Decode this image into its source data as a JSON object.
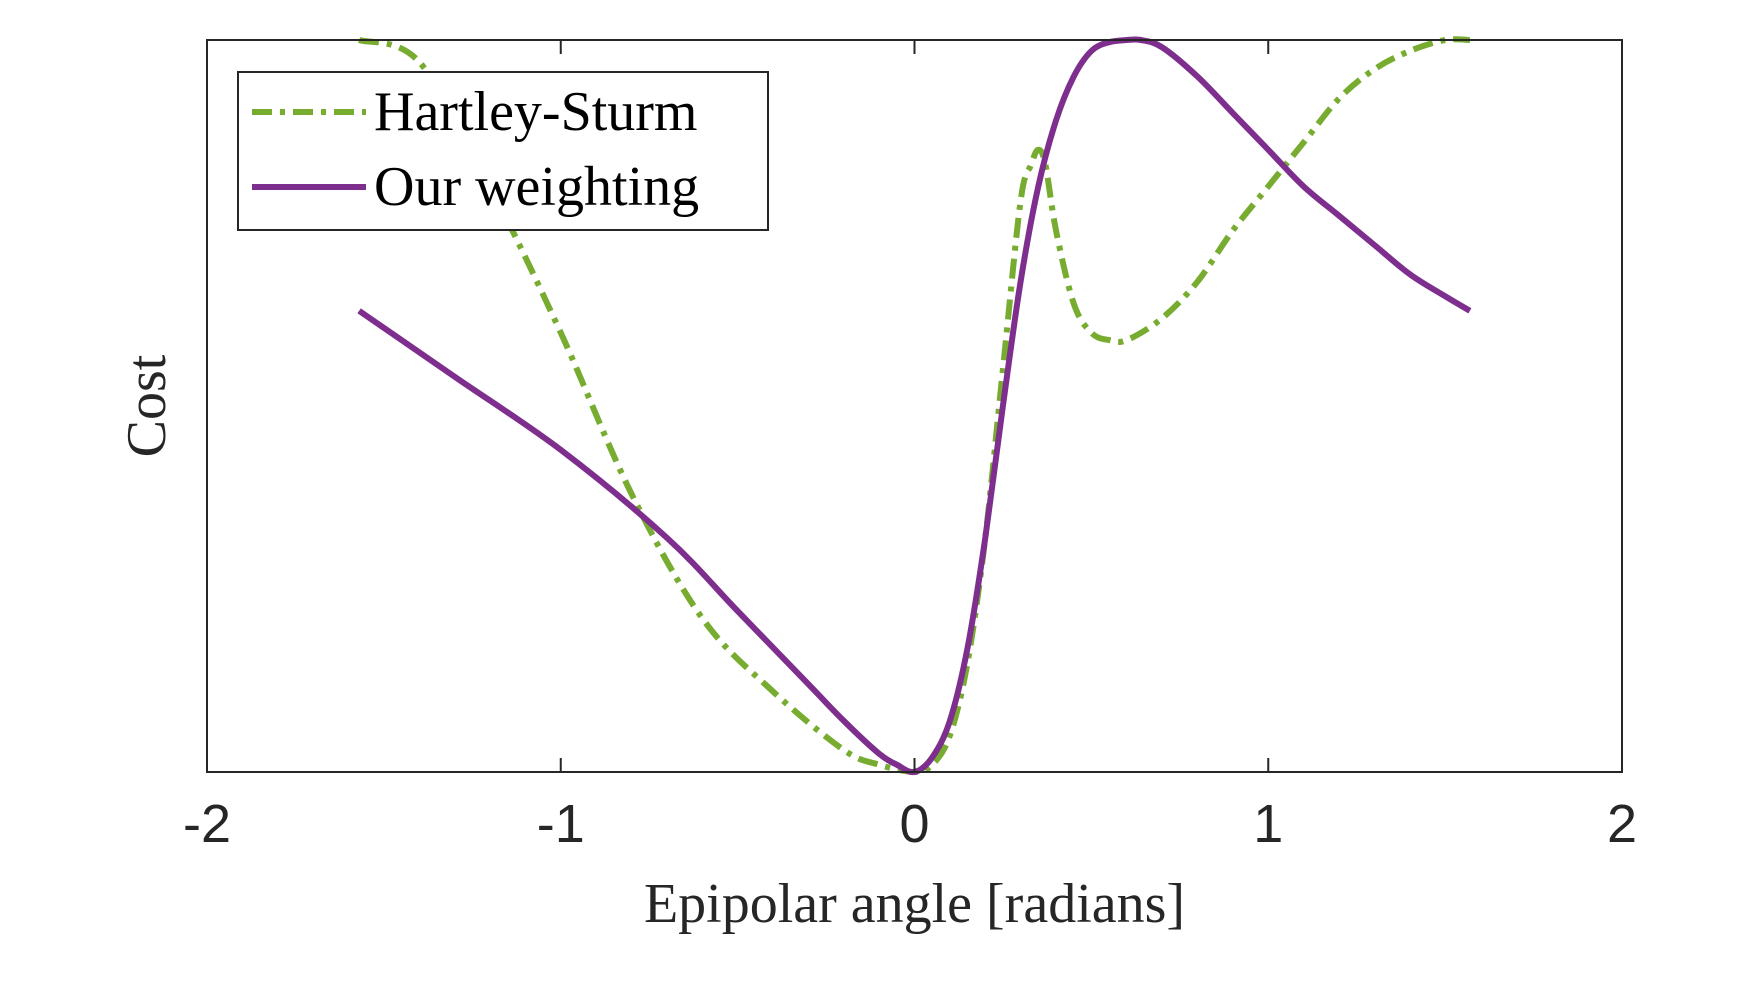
{
  "chart_data": {
    "type": "line",
    "xlabel": "Epipolar angle [radians]",
    "ylabel": "Cost",
    "xlim": [
      -2,
      2
    ],
    "ylim": [
      0,
      1
    ],
    "xticks": [
      "-2",
      "-1",
      "0",
      "1",
      "2"
    ],
    "y_tick_labels_shown": false,
    "grid": false,
    "legend_location": "top-left",
    "series": [
      {
        "name": "Hartley-Sturm",
        "color": "#77AC30",
        "line_style": "dash-dot",
        "x": [
          -1.57,
          -1.4,
          -1.2,
          -1.0,
          -0.8,
          -0.6,
          -0.4,
          -0.2,
          -0.1,
          0.0,
          0.05,
          0.1,
          0.15,
          0.2,
          0.25,
          0.3,
          0.33,
          0.35,
          0.37,
          0.4,
          0.45,
          0.5,
          0.55,
          0.6,
          0.7,
          0.8,
          0.9,
          1.0,
          1.1,
          1.2,
          1.3,
          1.4,
          1.5,
          1.57
        ],
        "y": [
          1.0,
          0.97,
          0.8,
          0.6,
          0.38,
          0.21,
          0.11,
          0.03,
          0.01,
          0.0,
          0.01,
          0.05,
          0.15,
          0.32,
          0.55,
          0.78,
          0.83,
          0.85,
          0.83,
          0.74,
          0.64,
          0.6,
          0.59,
          0.59,
          0.62,
          0.67,
          0.74,
          0.8,
          0.86,
          0.92,
          0.96,
          0.985,
          1.0,
          1.0
        ]
      },
      {
        "name": "Our weighting",
        "color": "#7E2F8E",
        "line_style": "solid",
        "x": [
          -1.57,
          -1.3,
          -1.0,
          -0.7,
          -0.5,
          -0.3,
          -0.2,
          -0.1,
          -0.05,
          0.0,
          0.05,
          0.1,
          0.15,
          0.2,
          0.25,
          0.3,
          0.35,
          0.4,
          0.45,
          0.5,
          0.55,
          0.6,
          0.64,
          0.7,
          0.8,
          0.9,
          1.0,
          1.1,
          1.2,
          1.3,
          1.4,
          1.5,
          1.57
        ],
        "y": [
          0.63,
          0.54,
          0.44,
          0.32,
          0.22,
          0.12,
          0.07,
          0.025,
          0.01,
          0.0,
          0.02,
          0.07,
          0.17,
          0.32,
          0.5,
          0.67,
          0.8,
          0.89,
          0.95,
          0.985,
          0.997,
          1.0,
          1.0,
          0.99,
          0.95,
          0.9,
          0.85,
          0.8,
          0.76,
          0.72,
          0.68,
          0.65,
          0.63
        ]
      }
    ]
  }
}
